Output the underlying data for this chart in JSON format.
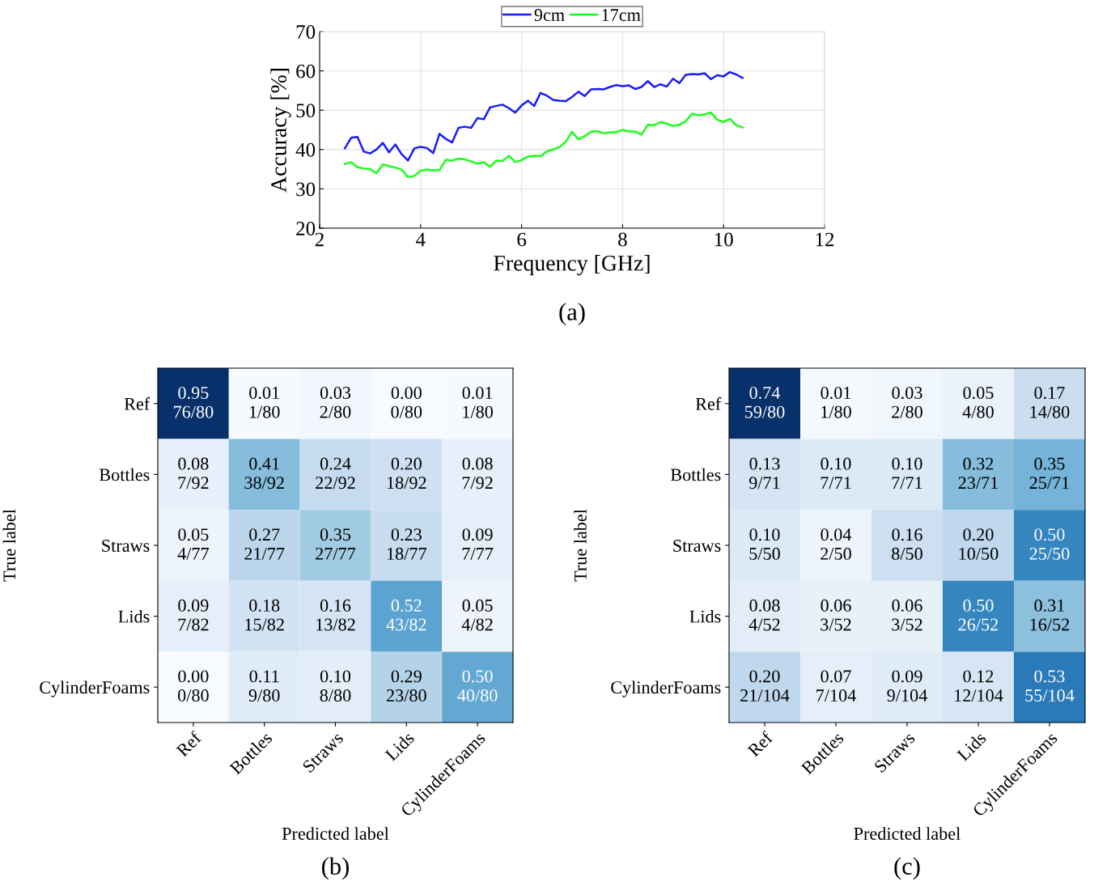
{
  "chart_data": [
    {
      "type": "line",
      "xlabel": "Frequency [GHz]",
      "ylabel": "Accuracy [%]",
      "xlim": [
        2,
        12
      ],
      "xticks": [
        2,
        4,
        6,
        8,
        10,
        12
      ],
      "ylim": [
        20,
        70
      ],
      "yticks": [
        20,
        30,
        40,
        50,
        60,
        70
      ],
      "grid": true,
      "legend": "top",
      "annotations": [
        "(a)"
      ],
      "x": [
        2.5,
        2.625,
        2.75,
        2.875,
        3.0,
        3.125,
        3.25,
        3.375,
        3.5,
        3.625,
        3.75,
        3.875,
        4.0,
        4.125,
        4.25,
        4.375,
        4.5,
        4.625,
        4.75,
        4.875,
        5.0,
        5.125,
        5.25,
        5.375,
        5.5,
        5.625,
        5.75,
        5.875,
        6.0,
        6.125,
        6.25,
        6.375,
        6.5,
        6.625,
        6.75,
        6.875,
        7.0,
        7.125,
        7.25,
        7.375,
        7.5,
        7.625,
        7.75,
        7.875,
        8.0,
        8.125,
        8.25,
        8.375,
        8.5,
        8.625,
        8.75,
        8.875,
        9.0,
        9.125,
        9.25,
        9.375,
        9.5,
        9.625,
        9.75,
        9.875,
        10.0,
        10.125,
        10.25,
        10.375
      ],
      "series": [
        {
          "name": "9cm",
          "color": "#1a1aff",
          "values": [
            40.3,
            43.0,
            43.2,
            39.5,
            39.0,
            40.0,
            41.7,
            39.3,
            41.3,
            38.8,
            37.2,
            40.3,
            40.7,
            40.4,
            39.1,
            44.0,
            42.7,
            41.8,
            45.5,
            45.8,
            45.5,
            48.0,
            47.7,
            50.7,
            51.1,
            51.4,
            50.5,
            49.4,
            51.2,
            52.4,
            51.1,
            54.4,
            53.7,
            52.6,
            52.4,
            52.3,
            53.4,
            54.7,
            53.6,
            55.3,
            55.4,
            55.3,
            55.9,
            56.4,
            56.1,
            56.3,
            55.4,
            55.9,
            57.4,
            55.9,
            56.6,
            56.0,
            58.0,
            56.9,
            59.0,
            59.2,
            59.1,
            59.4,
            57.9,
            58.9,
            58.6,
            59.7,
            59.1,
            58.2
          ]
        },
        {
          "name": "17cm",
          "color": "#1aff1a",
          "values": [
            36.3,
            36.8,
            35.5,
            35.2,
            35.0,
            34.0,
            36.2,
            35.8,
            35.4,
            34.9,
            33.0,
            33.3,
            34.6,
            34.9,
            34.7,
            34.8,
            37.4,
            37.2,
            37.7,
            37.5,
            37.0,
            36.4,
            36.8,
            35.6,
            37.2,
            37.1,
            38.4,
            36.8,
            37.3,
            38.2,
            38.4,
            38.3,
            39.5,
            40.0,
            40.6,
            42.0,
            44.5,
            42.6,
            43.4,
            44.5,
            44.7,
            44.1,
            44.4,
            44.4,
            45.0,
            44.6,
            44.6,
            43.8,
            46.3,
            46.2,
            47.0,
            46.6,
            46.0,
            46.3,
            47.2,
            49.1,
            48.7,
            48.9,
            49.4,
            47.6,
            47.0,
            47.8,
            46.2,
            45.6
          ]
        }
      ]
    },
    {
      "type": "heatmap",
      "xlabel": "Predicted label",
      "ylabel": "True label",
      "categories": [
        "Ref",
        "Bottles",
        "Straws",
        "Lids",
        "CylinderFoams"
      ],
      "y_categories": [
        "Ref",
        "Bottles",
        "Straws",
        "Lids",
        "CylinderFoams"
      ],
      "cells": [
        [
          0.95,
          0.01,
          0.03,
          0.0,
          0.01
        ],
        [
          0.08,
          0.41,
          0.24,
          0.2,
          0.08
        ],
        [
          0.05,
          0.27,
          0.35,
          0.23,
          0.09
        ],
        [
          0.09,
          0.18,
          0.16,
          0.52,
          0.05
        ],
        [
          0.0,
          0.11,
          0.1,
          0.29,
          0.5
        ]
      ],
      "cell_labels": [
        [
          "0.95",
          "0.01",
          "0.03",
          "0.00",
          "0.01"
        ],
        [
          "0.08",
          "0.41",
          "0.24",
          "0.20",
          "0.08"
        ],
        [
          "0.05",
          "0.27",
          "0.35",
          "0.23",
          "0.09"
        ],
        [
          "0.09",
          "0.18",
          "0.16",
          "0.52",
          "0.05"
        ],
        [
          "0.00",
          "0.11",
          "0.10",
          "0.29",
          "0.50"
        ]
      ],
      "annotations": [
        "(b)",
        "76/80",
        "1/80",
        "2/80",
        "0/80",
        "1/80",
        "7/92",
        "38/92",
        "22/92",
        "18/92",
        "7/92",
        "4/77",
        "21/77",
        "27/77",
        "18/77",
        "7/77",
        "7/82",
        "15/82",
        "13/82",
        "43/82",
        "4/82",
        "0/80",
        "9/80",
        "8/80",
        "23/80",
        "40/80"
      ]
    },
    {
      "type": "heatmap",
      "xlabel": "Predicted label",
      "ylabel": "True label",
      "categories": [
        "Ref",
        "Bottles",
        "Straws",
        "Lids",
        "CylinderFoams"
      ],
      "y_categories": [
        "Ref",
        "Bottles",
        "Straws",
        "Lids",
        "CylinderFoams"
      ],
      "cells": [
        [
          0.74,
          0.01,
          0.03,
          0.05,
          0.17
        ],
        [
          0.13,
          0.1,
          0.1,
          0.32,
          0.35
        ],
        [
          0.1,
          0.04,
          0.16,
          0.2,
          0.5
        ],
        [
          0.08,
          0.06,
          0.06,
          0.5,
          0.31
        ],
        [
          0.2,
          0.07,
          0.09,
          0.12,
          0.53
        ]
      ],
      "cell_labels": [
        [
          "0.74",
          "0.01",
          "0.03",
          "0.05",
          "0.17"
        ],
        [
          "0.13",
          "0.10",
          "0.10",
          "0.32",
          "0.35"
        ],
        [
          "0.10",
          "0.04",
          "0.16",
          "0.20",
          "0.50"
        ],
        [
          "0.08",
          "0.06",
          "0.06",
          "0.50",
          "0.31"
        ],
        [
          "0.20",
          "0.07",
          "0.09",
          "0.12",
          "0.53"
        ]
      ],
      "annotations": [
        "(c)",
        "59/80",
        "1/80",
        "2/80",
        "4/80",
        "14/80",
        "9/71",
        "7/71",
        "7/71",
        "23/71",
        "25/71",
        "5/50",
        "2/50",
        "8/50",
        "10/50",
        "25/50",
        "4/52",
        "3/52",
        "3/52",
        "26/52",
        "16/52",
        "21/104",
        "7/104",
        "9/104",
        "12/104",
        "55/104"
      ]
    }
  ]
}
